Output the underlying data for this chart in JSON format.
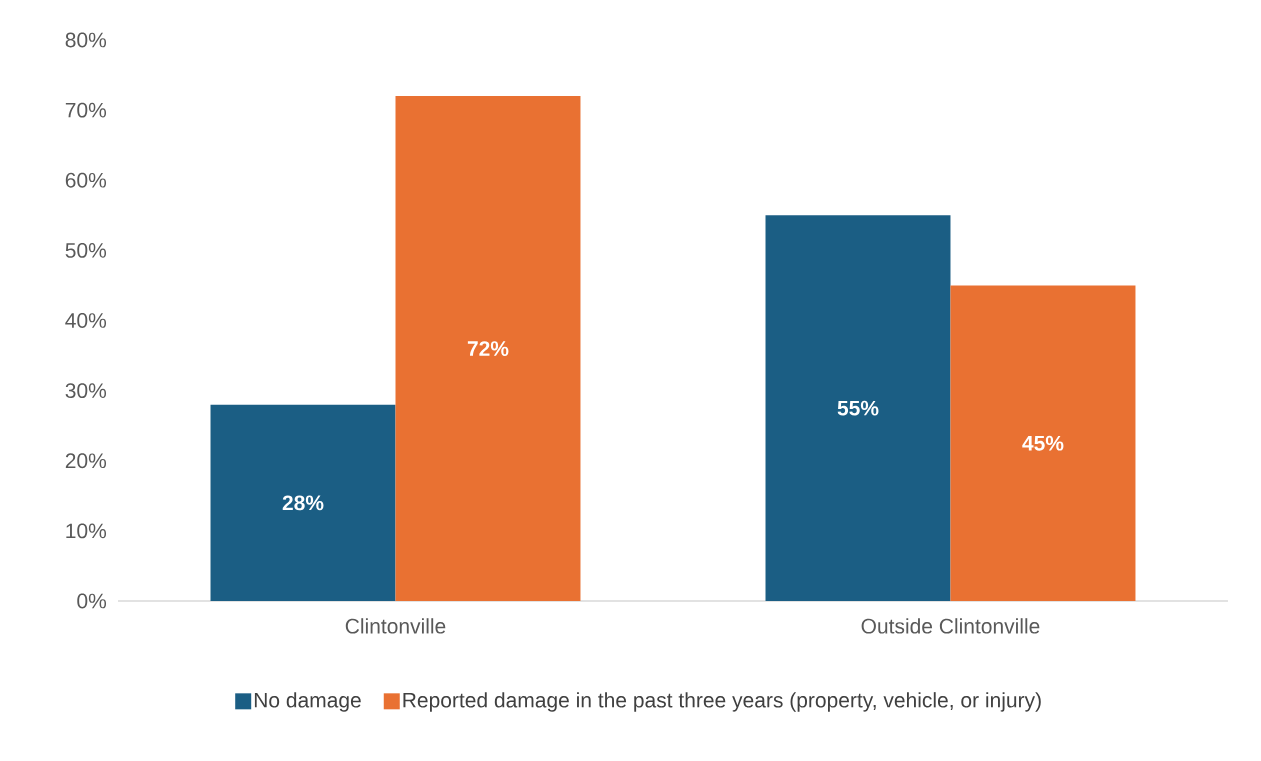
{
  "chart_data": {
    "type": "bar",
    "categories": [
      "Clintonville",
      "Outside Clintonville"
    ],
    "series": [
      {
        "name": "No damage",
        "color": "#1b5e84",
        "values": [
          28,
          55
        ],
        "value_labels": [
          "28%",
          "55%"
        ]
      },
      {
        "name": "Reported damage in the past three years (property, vehicle, or injury)",
        "color": "#e97132",
        "values": [
          72,
          45
        ],
        "value_labels": [
          "72%",
          "45%"
        ]
      }
    ],
    "ylim": [
      0,
      80
    ],
    "yticks": [
      {
        "value": 0,
        "label": "0%"
      },
      {
        "value": 10,
        "label": "10%"
      },
      {
        "value": 20,
        "label": "20%"
      },
      {
        "value": 30,
        "label": "30%"
      },
      {
        "value": 40,
        "label": "40%"
      },
      {
        "value": 50,
        "label": "50%"
      },
      {
        "value": 60,
        "label": "60%"
      },
      {
        "value": 70,
        "label": "70%"
      },
      {
        "value": 80,
        "label": "80%"
      }
    ],
    "legend": "bottom"
  }
}
